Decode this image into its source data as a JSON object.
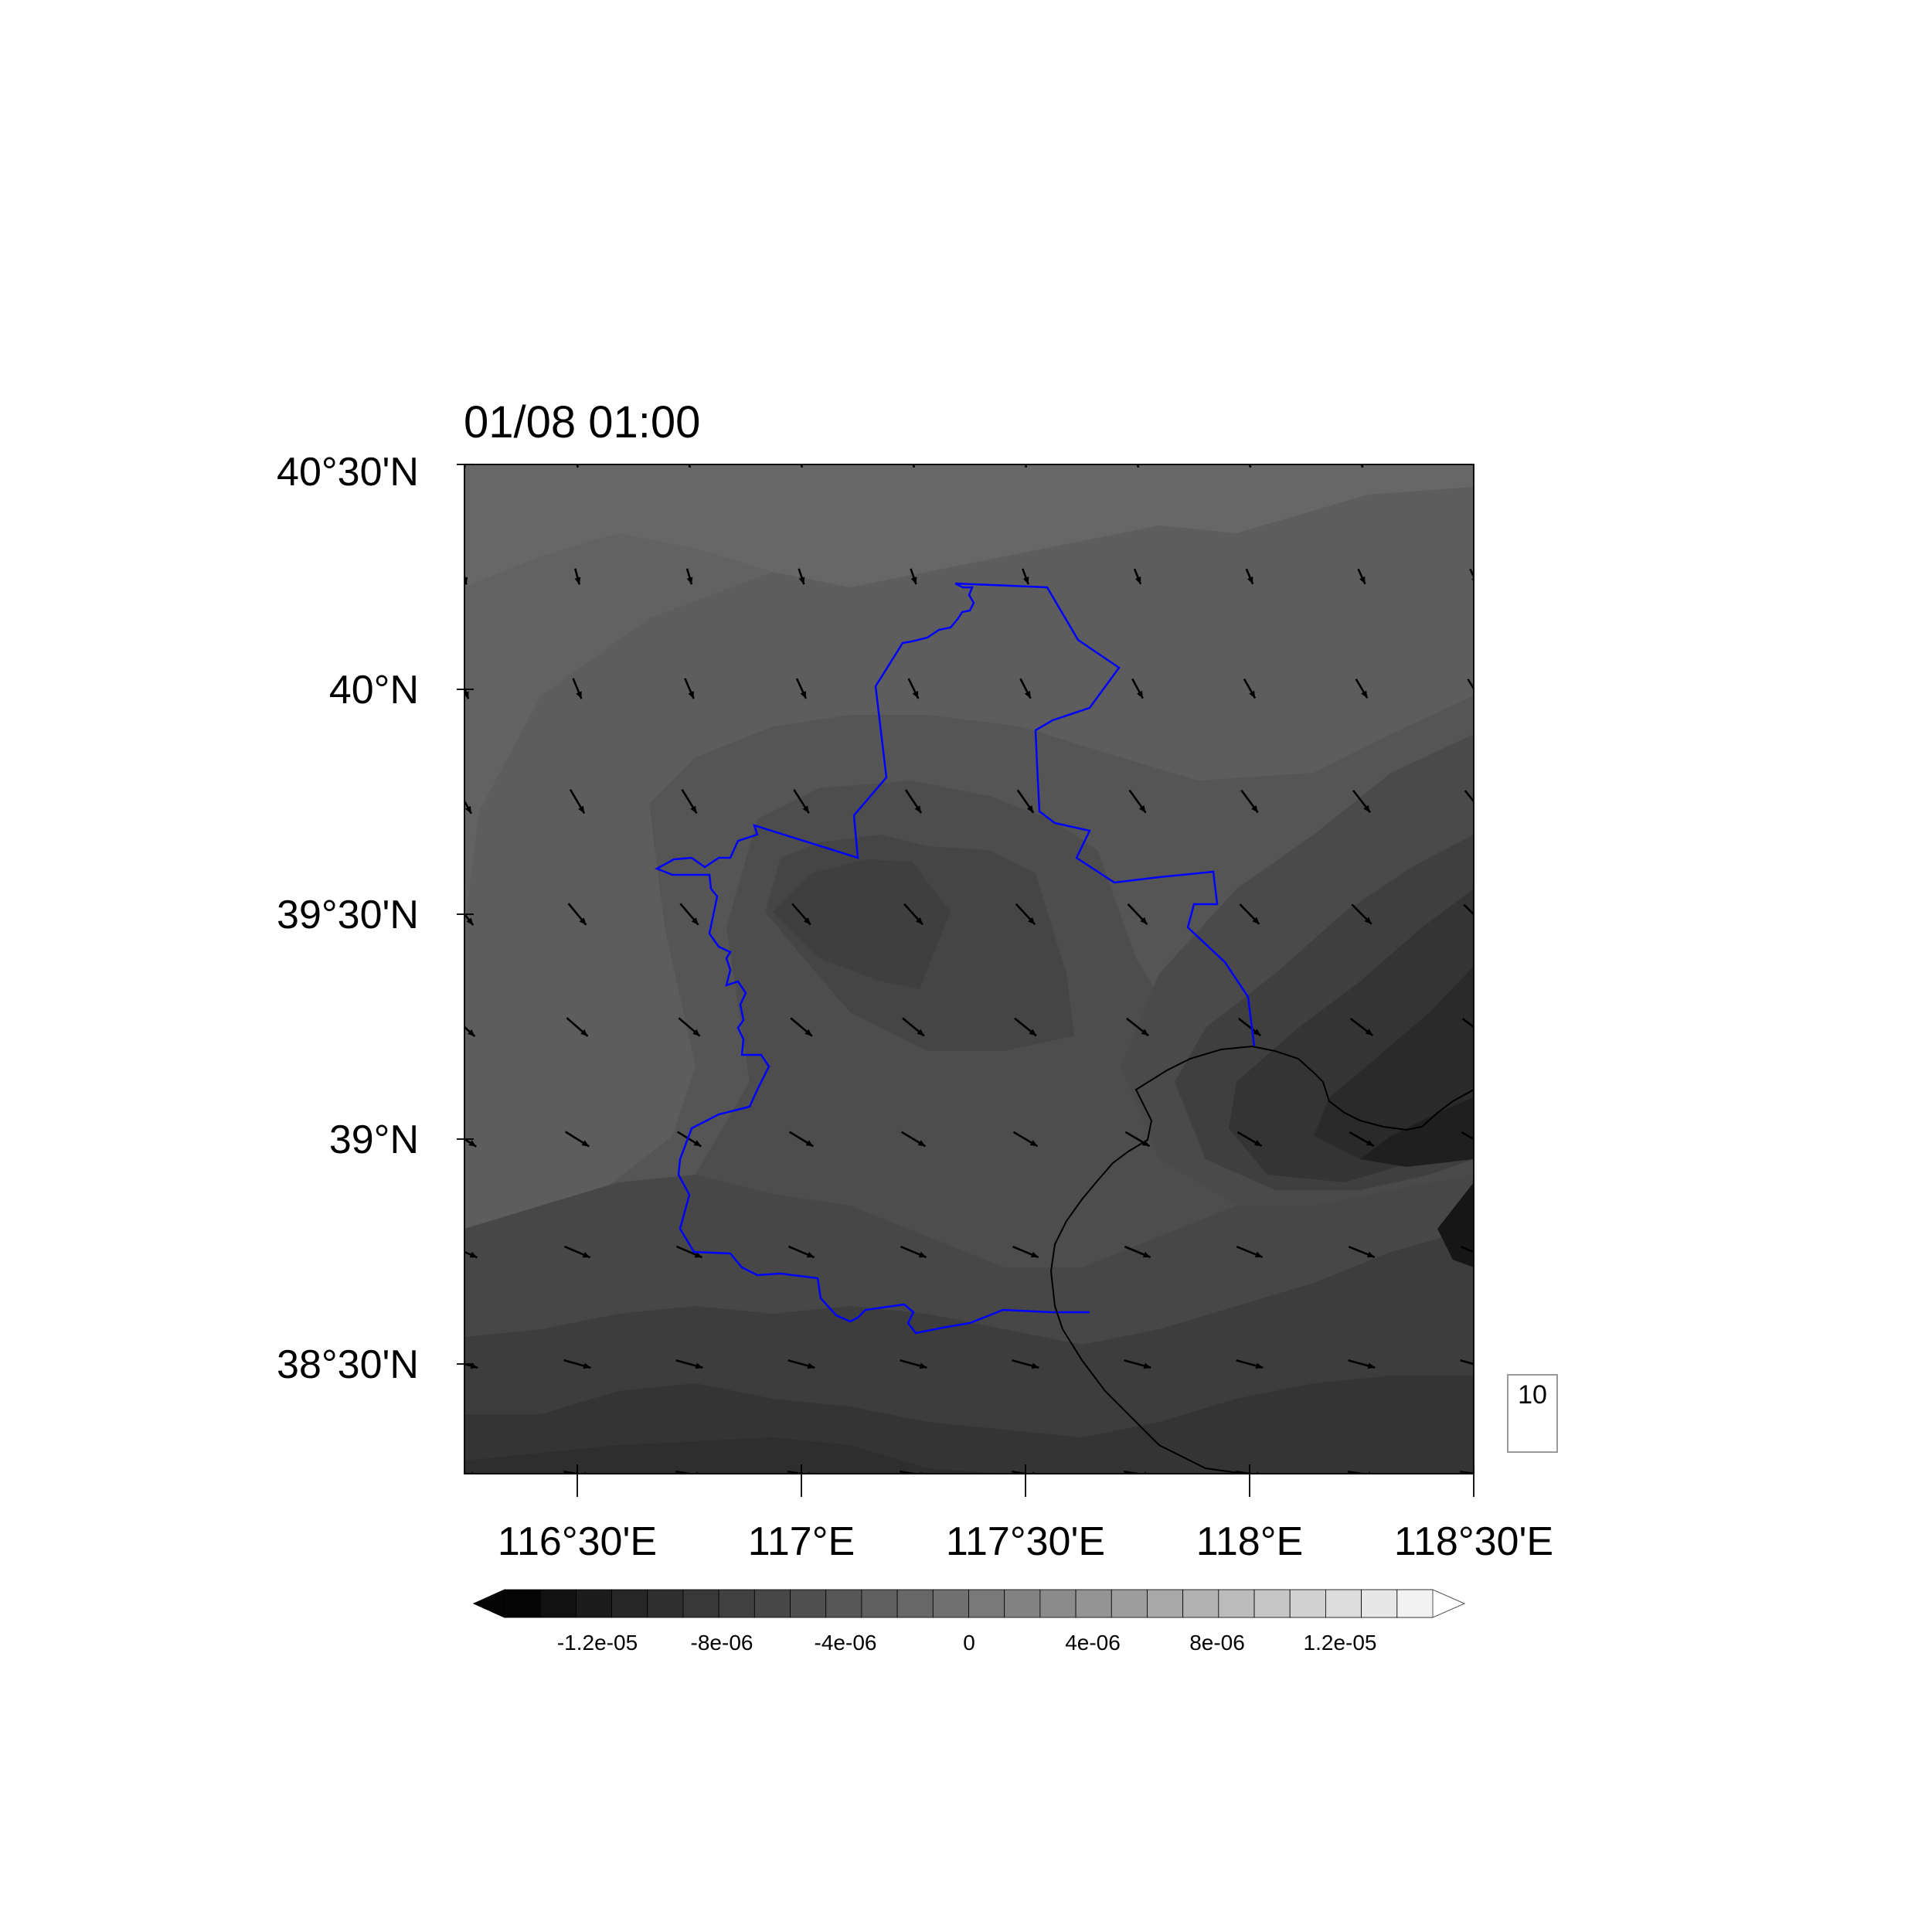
{
  "title": "01/08 01:00",
  "y_ticks": [
    "40°30'N",
    "40°N",
    "39°30'N",
    "39°N",
    "38°30'N"
  ],
  "x_ticks": [
    "116°30'E",
    "117°E",
    "117°30'E",
    "118°E",
    "118°30'E"
  ],
  "colorbar": {
    "labels": [
      "-1.2e-05",
      "-8e-06",
      "-4e-06",
      "0",
      "4e-06",
      "8e-06",
      "1.2e-05"
    ],
    "min": -1.4e-05,
    "max": 1.4e-05,
    "interval": 1e-06,
    "colors_dark_to_light": [
      "#050505",
      "#111111",
      "#1c1c1c",
      "#262626",
      "#2f2f2f",
      "#383838",
      "#404040",
      "#474747",
      "#4f4f4f",
      "#575757",
      "#5f5f5f",
      "#676767",
      "#707070",
      "#797979",
      "#828282",
      "#8b8b8b",
      "#949494",
      "#9e9e9e",
      "#a8a8a8",
      "#b2b2b2",
      "#bcbcbc",
      "#c6c6c6",
      "#d1d1d1",
      "#dcdcdc",
      "#e7e7e7",
      "#f2f2f2"
    ],
    "extends": "both"
  },
  "reference_vector": {
    "label": "10"
  },
  "boundaries": {
    "province_color": "#0000ff",
    "coast_color": "#000000"
  }
}
